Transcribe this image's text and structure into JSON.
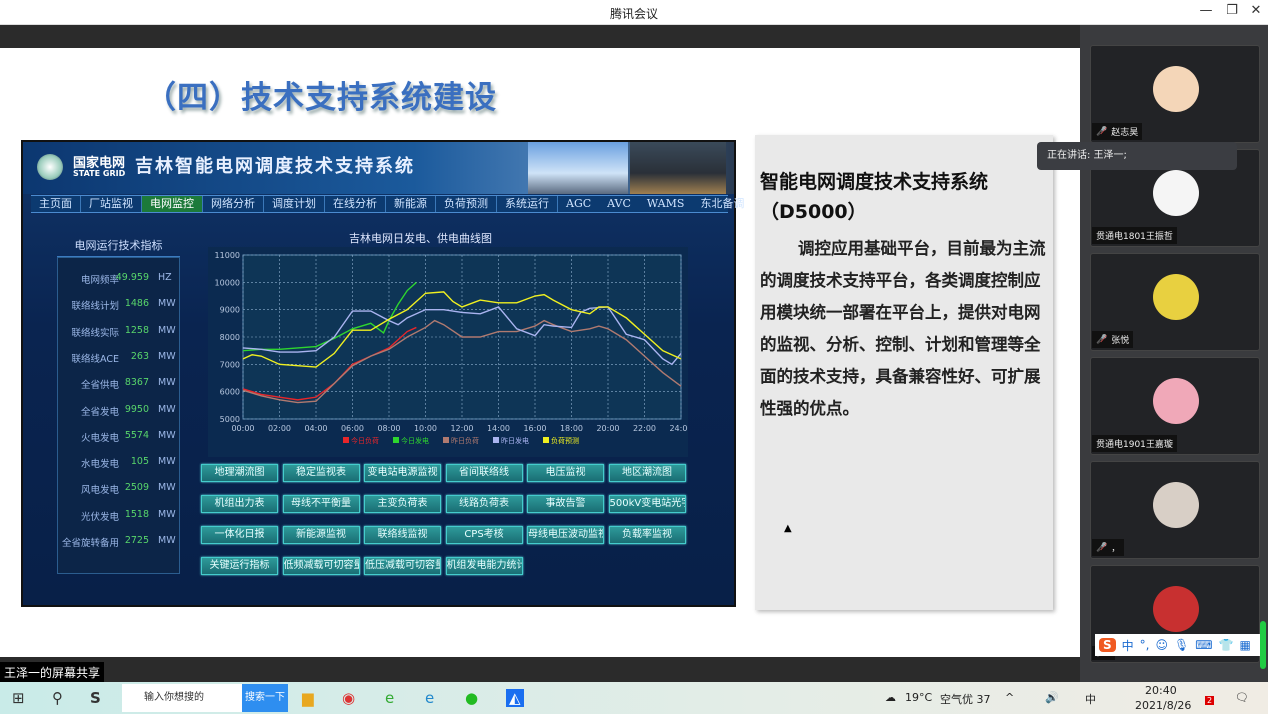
{
  "window": {
    "title": "腾讯会议",
    "minimize": "—",
    "restore": "❐",
    "close": "✕"
  },
  "slide": {
    "title": "（四）技术支持系统建设",
    "system": {
      "logo_cn": "国家电网",
      "logo_en": "STATE GRID",
      "name": "吉林智能电网调度技术支持系统",
      "nav": [
        "主页面",
        "厂站监视",
        "电网监控",
        "网络分析",
        "调度计划",
        "在线分析",
        "新能源",
        "负荷预测",
        "系统运行",
        "AGC",
        "AVC",
        "WAMS",
        "东北备调"
      ],
      "nav_active": "电网监控",
      "indicators_title": "电网运行技术指标",
      "indicators": [
        {
          "label": "电网频率",
          "value": "49.959",
          "unit": "HZ"
        },
        {
          "label": "联络线计划",
          "value": "1486",
          "unit": "MW"
        },
        {
          "label": "联络线实际",
          "value": "1258",
          "unit": "MW"
        },
        {
          "label": "联络线ACE",
          "value": "263",
          "unit": "MW"
        },
        {
          "label": "全省供电",
          "value": "8367",
          "unit": "MW"
        },
        {
          "label": "全省发电",
          "value": "9950",
          "unit": "MW"
        },
        {
          "label": "火电发电",
          "value": "5574",
          "unit": "MW"
        },
        {
          "label": "水电发电",
          "value": "105",
          "unit": "MW"
        },
        {
          "label": "风电发电",
          "value": "2509",
          "unit": "MW"
        },
        {
          "label": "光伏发电",
          "value": "1518",
          "unit": "MW"
        },
        {
          "label": "全省旋转备用",
          "value": "2725",
          "unit": "MW"
        }
      ],
      "buttons": [
        [
          "地理潮流图",
          "稳定监视表",
          "变电站电源监视",
          "省间联络线",
          "电压监视",
          "地区潮流图"
        ],
        [
          "机组出力表",
          "母线不平衡量",
          "主变负荷表",
          "线路负荷表",
          "事故告警",
          "500kV变电站光字"
        ],
        [
          "一体化日报",
          "新能源监视",
          "联络线监视",
          "CPS考核",
          "母线电压波动监视",
          "负载率监视"
        ],
        [
          "关键运行指标",
          "低频减载可切容量",
          "低压减载可切容量",
          "机组发电能力统计"
        ]
      ]
    },
    "text_heading": "智能电网调度技术支持系统（D5000）",
    "text_body": "调控应用基础平台，目前最为主流的调度技术支持平台，各类调度控制应用模块统一部署在平台上，提供对电网的监视、分析、控制、计划和管理等全面的技术支持，具备兼容性好、可扩展性强的优点。"
  },
  "chart_data": {
    "type": "line",
    "title": "吉林电网日发电、供电曲线图",
    "xlabel": "",
    "ylabel": "",
    "xlim": [
      0,
      24
    ],
    "ylim": [
      5000,
      11000
    ],
    "grid": true,
    "legend": "bottom",
    "xticks": [
      "00:00",
      "02:00",
      "04:00",
      "06:00",
      "08:00",
      "10:00",
      "12:00",
      "14:00",
      "16:00",
      "18:00",
      "20:00",
      "22:00",
      "24:00"
    ],
    "yticks": [
      "5000",
      "6000",
      "7000",
      "8000",
      "9000",
      "10000",
      "11000"
    ],
    "series": [
      {
        "name": "今日负荷",
        "color": "#e8262a",
        "x": [
          0,
          1,
          2,
          3,
          4,
          5,
          6,
          7,
          8,
          9,
          9.5
        ],
        "y": [
          6100,
          5900,
          5800,
          5700,
          5800,
          6300,
          7000,
          7300,
          7600,
          8200,
          8350
        ]
      },
      {
        "name": "今日发电",
        "color": "#2ed62e",
        "x": [
          0,
          1,
          2,
          3,
          4,
          5,
          6,
          7,
          7.7,
          8,
          8.5,
          9,
          9.5
        ],
        "y": [
          7500,
          7550,
          7550,
          7600,
          7650,
          7950,
          8300,
          8500,
          8150,
          8600,
          9200,
          9700,
          10000
        ]
      },
      {
        "name": "昨日负荷",
        "color": "#b07a70",
        "x": [
          0,
          1,
          2,
          3,
          4,
          5,
          6,
          7,
          8,
          9,
          10,
          10.5,
          11,
          12,
          13,
          14,
          15,
          16,
          16.5,
          17,
          18,
          19,
          19.5,
          20,
          21,
          22,
          23,
          24
        ],
        "y": [
          6050,
          5850,
          5700,
          5600,
          5650,
          6300,
          6950,
          7300,
          7550,
          8000,
          8350,
          8600,
          8450,
          8000,
          8000,
          8200,
          8200,
          8400,
          8600,
          8450,
          8200,
          8300,
          8400,
          8300,
          7900,
          7300,
          6700,
          6200
        ]
      },
      {
        "name": "昨日发电",
        "color": "#aab4f0",
        "x": [
          0,
          1,
          2,
          3,
          4,
          5,
          6,
          7,
          8,
          8.5,
          9,
          10,
          11,
          12,
          13,
          14,
          15,
          16,
          16.5,
          17,
          18,
          18.5,
          19,
          20,
          21,
          22,
          23,
          23.5,
          24
        ],
        "y": [
          7600,
          7550,
          7450,
          7450,
          7500,
          8000,
          8950,
          8950,
          8600,
          8450,
          8700,
          9000,
          9000,
          8900,
          8850,
          9100,
          8300,
          8050,
          8450,
          8400,
          8350,
          8900,
          9050,
          9100,
          8100,
          7900,
          7200,
          7000,
          7400
        ]
      },
      {
        "name": "负荷预测",
        "color": "#f0f020",
        "x": [
          0,
          0.5,
          1,
          2,
          3,
          4,
          5,
          6,
          7,
          8,
          9,
          10,
          11,
          11.5,
          12,
          13,
          14,
          15,
          16,
          16.5,
          17,
          18,
          19,
          19.5,
          20,
          21,
          22,
          23,
          24
        ],
        "y": [
          7200,
          7350,
          7300,
          7000,
          6950,
          6900,
          7400,
          8250,
          8250,
          8650,
          9000,
          9600,
          9650,
          9300,
          9100,
          9350,
          9250,
          9250,
          9500,
          9550,
          9350,
          9000,
          8850,
          9100,
          9100,
          8700,
          8100,
          7500,
          7200
        ]
      }
    ]
  },
  "meeting": {
    "speaking": "正在讲话: 王泽一;",
    "participants": [
      {
        "name": "赵志昊",
        "muted": true,
        "color": "#f4d6b8"
      },
      {
        "name": "贯通电1801王振哲",
        "muted": false,
        "color": "#f5f5f5"
      },
      {
        "name": "张悦",
        "muted": true,
        "color": "#e8d040"
      },
      {
        "name": "贯通电1901王嘉璇",
        "muted": false,
        "color": "#f0a8b8"
      },
      {
        "name": "，",
        "muted": true,
        "color": "#d8cfc6"
      },
      {
        "name": "",
        "muted": true,
        "color": "#c83030"
      }
    ],
    "share_label": "王泽一的屏幕共享"
  },
  "ime": {
    "logo": "S",
    "mode": "中",
    "punct": "°,"
  },
  "taskbar": {
    "search_placeholder": "输入你想搜的",
    "search_button": "搜索一下",
    "weather": "19°C",
    "air": "空气优 37",
    "ime": "中",
    "time": "20:40",
    "date": "2021/8/26",
    "notif_count": "2"
  }
}
